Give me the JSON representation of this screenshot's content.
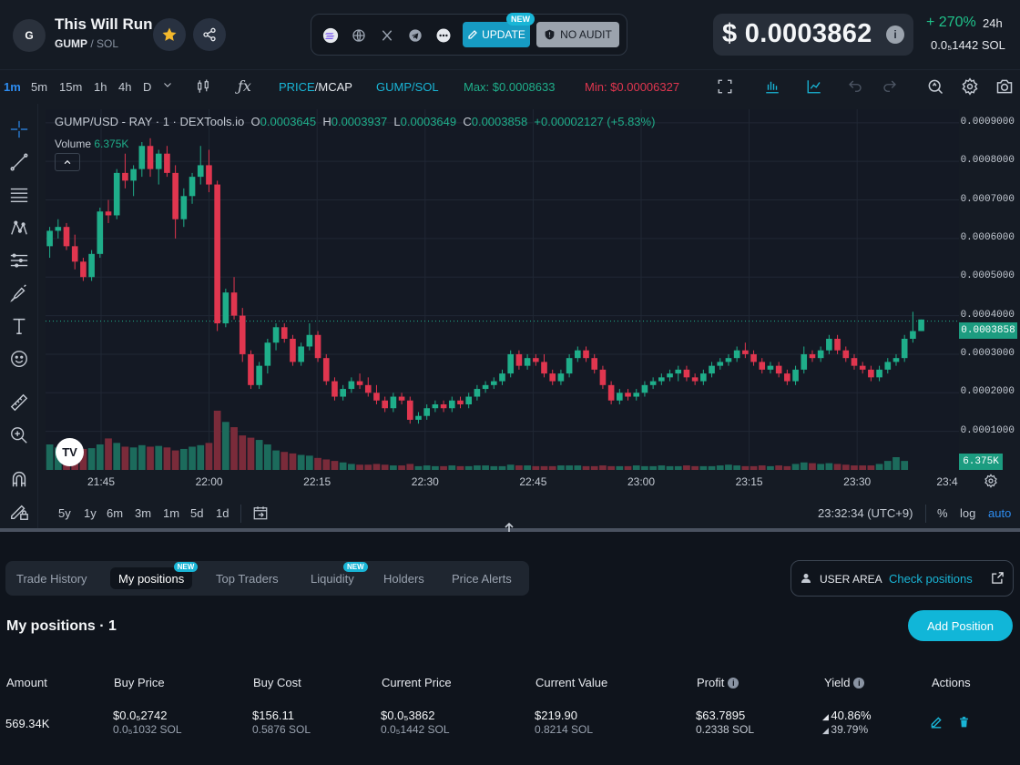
{
  "header": {
    "avatar_letter": "G",
    "token_name": "This Will Run",
    "base": "GUMP",
    "quote": "SOL",
    "update_label": "UPDATE",
    "update_badge": "NEW",
    "no_audit_label": "NO AUDIT",
    "price": "$ 0.0003862",
    "change": "+ 270%",
    "change_period": "24h",
    "sol_price": "0.0₅1442  SOL",
    "colors": {
      "accent": "#19b5d6",
      "positive": "#1fc28a",
      "negative": "#e0364f"
    }
  },
  "toolbar": {
    "timeframes": [
      "1m",
      "5m",
      "15m",
      "1h",
      "4h",
      "D"
    ],
    "active_timeframe": "1m",
    "price_label": "PRICE",
    "mcap_label": "MCAP",
    "pair_label": "GUMP/SOL",
    "max_label": "Max: $0.0008633",
    "min_label": "Min: $0.00006327"
  },
  "chart_info": {
    "symbol": "GUMP/USD - RAY · 1 · DEXTools.io",
    "o_label": "O",
    "o": "0.0003645",
    "h_label": "H",
    "h": "0.0003937",
    "l_label": "L",
    "l": "0.0003649",
    "c_label": "C",
    "c": "0.0003858",
    "change": "+0.00002127 (+5.83%)",
    "volume_label": "Volume",
    "volume_value": "6.375K"
  },
  "chart_data": {
    "type": "candlestick",
    "x_labels": [
      "21:45",
      "22:00",
      "22:15",
      "22:30",
      "22:45",
      "23:00",
      "23:15",
      "23:30",
      "23:4"
    ],
    "y_ticks": [
      "0.0009000",
      "0.0008000",
      "0.0007000",
      "0.0006000",
      "0.0005000",
      "0.0004000",
      "0.0003000",
      "0.0002000",
      "0.0001000"
    ],
    "ylim": [
      0.0,
      0.000935
    ],
    "last_price": "0.0003858",
    "last_volume": "6.375K",
    "candles": [
      [
        0.00058,
        0.00063,
        0.00055,
        0.00062
      ],
      [
        0.00062,
        0.00065,
        0.0006,
        0.00063
      ],
      [
        0.00063,
        0.00064,
        0.00057,
        0.00058
      ],
      [
        0.00058,
        0.00061,
        0.00052,
        0.00054
      ],
      [
        0.00054,
        0.00055,
        0.00049,
        0.0005
      ],
      [
        0.0005,
        0.00057,
        0.00049,
        0.00056
      ],
      [
        0.00056,
        0.00068,
        0.00055,
        0.00067
      ],
      [
        0.00067,
        0.0007,
        0.00064,
        0.00066
      ],
      [
        0.00066,
        0.00078,
        0.00065,
        0.00077
      ],
      [
        0.00077,
        0.00082,
        0.00073,
        0.00075
      ],
      [
        0.00075,
        0.00079,
        0.00071,
        0.00078
      ],
      [
        0.00078,
        0.00085,
        0.00076,
        0.00084
      ],
      [
        0.00084,
        0.00086,
        0.00076,
        0.00078
      ],
      [
        0.00078,
        0.00083,
        0.00074,
        0.00082
      ],
      [
        0.00082,
        0.00084,
        0.00076,
        0.00077
      ],
      [
        0.00077,
        0.00079,
        0.0006,
        0.00065
      ],
      [
        0.00065,
        0.00073,
        0.00063,
        0.00071
      ],
      [
        0.00071,
        0.00077,
        0.00069,
        0.00076
      ],
      [
        0.00076,
        0.00084,
        0.00074,
        0.00079
      ],
      [
        0.00079,
        0.00083,
        0.00072,
        0.00074
      ],
      [
        0.00074,
        0.00075,
        0.00036,
        0.00038
      ],
      [
        0.00038,
        0.00047,
        0.00037,
        0.00046
      ],
      [
        0.00046,
        0.0005,
        0.00039,
        0.0004
      ],
      [
        0.0004,
        0.00042,
        0.00028,
        0.0003
      ],
      [
        0.0003,
        0.00031,
        0.00021,
        0.00022
      ],
      [
        0.00022,
        0.00028,
        0.00021,
        0.00027
      ],
      [
        0.00027,
        0.00034,
        0.00025,
        0.00033
      ],
      [
        0.00033,
        0.00038,
        0.00031,
        0.00037
      ],
      [
        0.00037,
        0.00038,
        0.00033,
        0.00034
      ],
      [
        0.00034,
        0.00035,
        0.00027,
        0.00028
      ],
      [
        0.00028,
        0.00033,
        0.00027,
        0.00032
      ],
      [
        0.00032,
        0.00038,
        0.00031,
        0.00035
      ],
      [
        0.00035,
        0.00036,
        0.00028,
        0.00029
      ],
      [
        0.00029,
        0.0003,
        0.00022,
        0.00023
      ],
      [
        0.00023,
        0.00024,
        0.00018,
        0.00019
      ],
      [
        0.00019,
        0.00022,
        0.00018,
        0.00021
      ],
      [
        0.00021,
        0.00024,
        0.0002,
        0.00023
      ],
      [
        0.00023,
        0.00025,
        0.00021,
        0.00022
      ],
      [
        0.00022,
        0.00024,
        0.00019,
        0.0002
      ],
      [
        0.0002,
        0.00022,
        0.00017,
        0.00018
      ],
      [
        0.00018,
        0.00019,
        0.00015,
        0.00016
      ],
      [
        0.00016,
        0.0002,
        0.00015,
        0.00019
      ],
      [
        0.00019,
        0.0002,
        0.00017,
        0.00018
      ],
      [
        0.00018,
        0.00019,
        0.00012,
        0.00013
      ],
      [
        0.00013,
        0.00015,
        0.00012,
        0.00014
      ],
      [
        0.00014,
        0.00017,
        0.00013,
        0.00016
      ],
      [
        0.00016,
        0.00018,
        0.00015,
        0.00017
      ],
      [
        0.00017,
        0.00018,
        0.00015,
        0.00016
      ],
      [
        0.00016,
        0.00019,
        0.00015,
        0.00018
      ],
      [
        0.00018,
        0.00019,
        0.00016,
        0.00017
      ],
      [
        0.00017,
        0.0002,
        0.00016,
        0.00019
      ],
      [
        0.00019,
        0.00022,
        0.00018,
        0.00021
      ],
      [
        0.00021,
        0.00023,
        0.0002,
        0.00022
      ],
      [
        0.00022,
        0.00024,
        0.00021,
        0.00023
      ],
      [
        0.00023,
        0.00026,
        0.00022,
        0.00025
      ],
      [
        0.00025,
        0.00031,
        0.00024,
        0.0003
      ],
      [
        0.0003,
        0.00031,
        0.00026,
        0.00027
      ],
      [
        0.00027,
        0.0003,
        0.00026,
        0.00029
      ],
      [
        0.00029,
        0.0003,
        0.00027,
        0.00028
      ],
      [
        0.00028,
        0.0003,
        0.00024,
        0.00025
      ],
      [
        0.00025,
        0.00026,
        0.00022,
        0.00023
      ],
      [
        0.00023,
        0.00026,
        0.00022,
        0.00025
      ],
      [
        0.00025,
        0.0003,
        0.00024,
        0.00029
      ],
      [
        0.00029,
        0.00032,
        0.00028,
        0.00031
      ],
      [
        0.00031,
        0.00032,
        0.00028,
        0.00029
      ],
      [
        0.00029,
        0.0003,
        0.00025,
        0.00026
      ],
      [
        0.00026,
        0.00027,
        0.00021,
        0.00022
      ],
      [
        0.00022,
        0.00023,
        0.00017,
        0.00018
      ],
      [
        0.00018,
        0.00021,
        0.00017,
        0.0002
      ],
      [
        0.0002,
        0.00021,
        0.00018,
        0.00019
      ],
      [
        0.00019,
        0.00021,
        0.00018,
        0.0002
      ],
      [
        0.0002,
        0.00023,
        0.00019,
        0.00022
      ],
      [
        0.00022,
        0.00024,
        0.00021,
        0.00023
      ],
      [
        0.00023,
        0.00025,
        0.00022,
        0.00024
      ],
      [
        0.00024,
        0.00026,
        0.00023,
        0.00025
      ],
      [
        0.00025,
        0.00027,
        0.00023,
        0.00026
      ],
      [
        0.00026,
        0.00027,
        0.00023,
        0.00024
      ],
      [
        0.00024,
        0.00025,
        0.00022,
        0.00023
      ],
      [
        0.00023,
        0.00026,
        0.00022,
        0.00025
      ],
      [
        0.00025,
        0.00028,
        0.00024,
        0.00027
      ],
      [
        0.00027,
        0.00029,
        0.00026,
        0.00028
      ],
      [
        0.00028,
        0.0003,
        0.00027,
        0.00029
      ],
      [
        0.00029,
        0.00032,
        0.00028,
        0.00031
      ],
      [
        0.00031,
        0.00033,
        0.00029,
        0.0003
      ],
      [
        0.0003,
        0.00031,
        0.00027,
        0.00028
      ],
      [
        0.00028,
        0.00029,
        0.00025,
        0.00026
      ],
      [
        0.00026,
        0.00028,
        0.00025,
        0.00027
      ],
      [
        0.00027,
        0.00028,
        0.00024,
        0.00025
      ],
      [
        0.00025,
        0.00026,
        0.00022,
        0.00023
      ],
      [
        0.00023,
        0.00027,
        0.00022,
        0.00026
      ],
      [
        0.00026,
        0.00032,
        0.00025,
        0.0003
      ],
      [
        0.0003,
        0.00031,
        0.00028,
        0.00029
      ],
      [
        0.00029,
        0.00032,
        0.00028,
        0.00031
      ],
      [
        0.00031,
        0.00035,
        0.0003,
        0.00034
      ],
      [
        0.00034,
        0.00035,
        0.0003,
        0.00031
      ],
      [
        0.00031,
        0.00032,
        0.00028,
        0.00029
      ],
      [
        0.00029,
        0.0003,
        0.00026,
        0.00027
      ],
      [
        0.00027,
        0.00028,
        0.00025,
        0.00026
      ],
      [
        0.00026,
        0.00027,
        0.00023,
        0.00024
      ],
      [
        0.00024,
        0.00027,
        0.00023,
        0.00026
      ],
      [
        0.00026,
        0.00029,
        0.00025,
        0.00028
      ],
      [
        0.00028,
        0.0003,
        0.00027,
        0.00029
      ],
      [
        0.00029,
        0.00035,
        0.00028,
        0.00034
      ],
      [
        0.00034,
        0.00041,
        0.00033,
        0.00036
      ],
      [
        0.00036,
        0.00039,
        0.00036,
        0.00039
      ]
    ],
    "volumes": [
      3.4,
      3.0,
      3.2,
      2.6,
      2.8,
      2.9,
      3.4,
      4.2,
      3.6,
      3.1,
      3.0,
      3.3,
      3.1,
      3.2,
      3.0,
      2.6,
      2.8,
      3.1,
      3.3,
      3.6,
      7.9,
      6.4,
      5.7,
      4.6,
      4.3,
      4.0,
      3.4,
      2.6,
      2.4,
      2.2,
      2.0,
      1.9,
      1.6,
      1.4,
      1.2,
      1.0,
      0.8,
      0.7,
      0.7,
      0.8,
      0.7,
      0.6,
      0.6,
      0.8,
      0.5,
      0.6,
      0.5,
      0.5,
      0.6,
      0.5,
      0.5,
      0.6,
      0.6,
      0.5,
      0.5,
      0.7,
      0.6,
      0.6,
      0.5,
      0.5,
      0.5,
      0.6,
      0.6,
      0.6,
      0.5,
      0.5,
      0.6,
      0.5,
      0.5,
      0.5,
      0.6,
      0.5,
      0.5,
      0.6,
      0.5,
      0.5,
      0.6,
      0.5,
      0.5,
      0.5,
      0.6,
      0.7,
      0.6,
      0.5,
      0.5,
      0.6,
      0.5,
      0.6,
      0.5,
      0.8,
      1.0,
      0.9,
      0.8,
      0.9,
      0.8,
      0.7,
      0.6,
      0.6,
      0.6,
      0.8,
      1.2,
      1.7,
      1.2
    ]
  },
  "range_bar": {
    "ranges": [
      "5y",
      "1y",
      "6m",
      "3m",
      "1m",
      "5d",
      "1d"
    ],
    "clock": "23:32:34 (UTC+9)",
    "percent": "%",
    "log": "log",
    "auto": "auto"
  },
  "tabs": [
    {
      "label": "Trade History",
      "badge": ""
    },
    {
      "label": "My positions",
      "badge": "NEW",
      "active": true
    },
    {
      "label": "Top Traders",
      "badge": ""
    },
    {
      "label": "Liquidity",
      "badge": "NEW"
    },
    {
      "label": "Holders",
      "badge": ""
    },
    {
      "label": "Price Alerts",
      "badge": ""
    }
  ],
  "user_area": {
    "label": "USER AREA",
    "link": "Check positions"
  },
  "positions": {
    "title": "My positions · 1",
    "add_button": "Add Position",
    "columns": [
      "Amount",
      "Buy Price",
      "Buy Cost",
      "Current Price",
      "Current Value",
      "Profit",
      "Yield",
      "Actions"
    ],
    "row": {
      "amount": "569.34K",
      "buy_price": "$0.0₅2742",
      "buy_price_sol": "0.0₅1032 SOL",
      "buy_cost": "$156.11",
      "buy_cost_sol": "0.5876 SOL",
      "current_price": "$0.0₅3862",
      "current_price_sol": "0.0₅1442 SOL",
      "current_value": "$219.90",
      "current_value_sol": "0.8214 SOL",
      "profit": "$63.7895",
      "profit_sol": "0.2338 SOL",
      "yield1": "40.86%",
      "yield2": "39.79%"
    }
  }
}
